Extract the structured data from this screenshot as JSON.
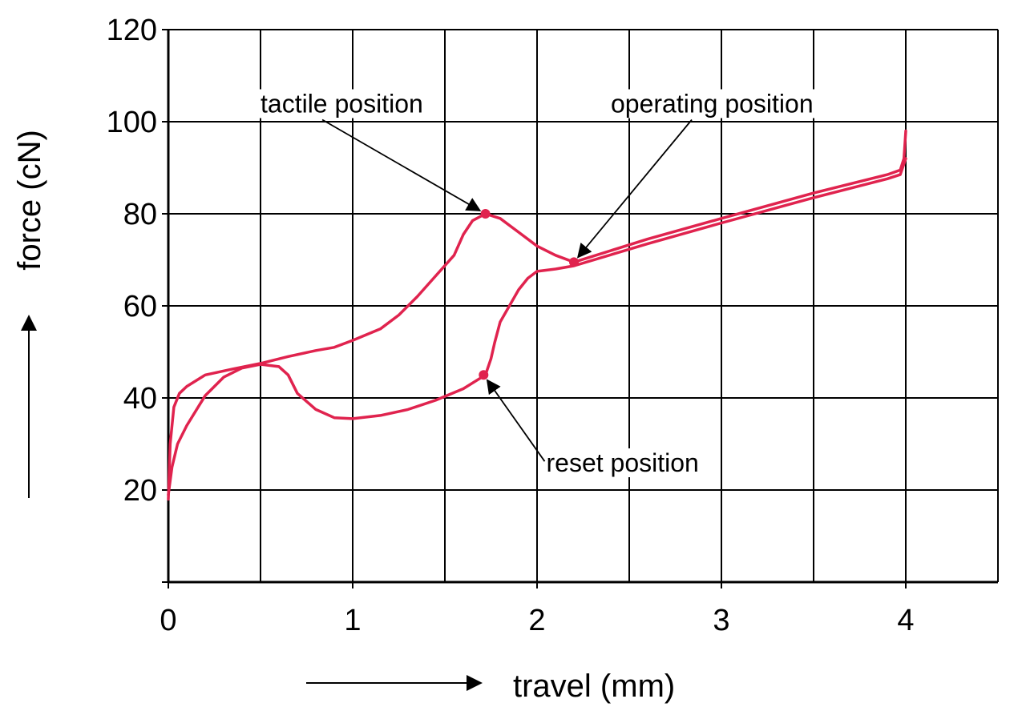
{
  "chart_data": {
    "type": "line",
    "title": "",
    "xlabel": "travel (mm)",
    "ylabel": "force (cN)",
    "xlim": [
      0,
      4.5
    ],
    "ylim": [
      0,
      120
    ],
    "x_ticks": [
      0,
      1,
      2,
      3,
      4
    ],
    "y_ticks": [
      20,
      40,
      60,
      80,
      100,
      120
    ],
    "grid": true,
    "line_color": "#e0234e",
    "series": [
      {
        "values": [
          [
            0.0,
            18
          ],
          [
            0.01,
            30
          ],
          [
            0.03,
            38
          ],
          [
            0.06,
            41
          ],
          [
            0.1,
            42.5
          ],
          [
            0.2,
            45
          ],
          [
            0.35,
            46.3
          ],
          [
            0.5,
            47.5
          ],
          [
            0.65,
            49
          ],
          [
            0.8,
            50.3
          ],
          [
            0.9,
            51
          ],
          [
            1.0,
            52.5
          ],
          [
            1.15,
            55
          ],
          [
            1.25,
            58
          ],
          [
            1.35,
            62
          ],
          [
            1.45,
            66.5
          ],
          [
            1.55,
            71
          ],
          [
            1.6,
            75.5
          ],
          [
            1.65,
            78.5
          ],
          [
            1.72,
            80
          ],
          [
            1.8,
            79
          ],
          [
            1.9,
            76
          ],
          [
            2.0,
            73
          ],
          [
            2.1,
            71
          ],
          [
            2.2,
            69.5
          ],
          [
            2.6,
            74.5
          ],
          [
            3.0,
            79
          ],
          [
            3.5,
            84.5
          ],
          [
            3.9,
            88.5
          ],
          [
            3.97,
            89.5
          ],
          [
            3.99,
            92
          ],
          [
            4.0,
            98
          ]
        ]
      },
      {
        "values": [
          [
            4.0,
            92
          ],
          [
            3.97,
            88.5
          ],
          [
            3.9,
            87.6
          ],
          [
            3.5,
            83.5
          ],
          [
            3.0,
            78
          ],
          [
            2.6,
            73.5
          ],
          [
            2.2,
            68.7
          ],
          [
            2.1,
            68
          ],
          [
            2.0,
            67.5
          ],
          [
            1.95,
            66
          ],
          [
            1.9,
            63.5
          ],
          [
            1.85,
            60
          ],
          [
            1.8,
            56.5
          ],
          [
            1.77,
            52
          ],
          [
            1.75,
            48.5
          ],
          [
            1.72,
            45
          ],
          [
            1.6,
            42
          ],
          [
            1.45,
            39.5
          ],
          [
            1.3,
            37.5
          ],
          [
            1.15,
            36.2
          ],
          [
            1.0,
            35.5
          ],
          [
            0.9,
            35.7
          ],
          [
            0.8,
            37.5
          ],
          [
            0.7,
            41
          ],
          [
            0.65,
            45
          ],
          [
            0.6,
            46.8
          ],
          [
            0.5,
            47.3
          ],
          [
            0.4,
            46.5
          ],
          [
            0.3,
            44.5
          ],
          [
            0.2,
            40.5
          ],
          [
            0.1,
            34
          ],
          [
            0.05,
            30
          ],
          [
            0.02,
            25
          ],
          [
            0.0,
            19
          ]
        ]
      }
    ],
    "markers": [
      {
        "x": 1.72,
        "y": 80
      },
      {
        "x": 2.2,
        "y": 69.5
      },
      {
        "x": 1.71,
        "y": 45
      }
    ],
    "annotations": [
      {
        "text": "tactile position",
        "x": 0.5,
        "y": 102,
        "target": [
          1.72,
          80
        ]
      },
      {
        "text": "operating position",
        "x": 2.4,
        "y": 102,
        "target": [
          2.2,
          69.5
        ]
      },
      {
        "text": "reset position",
        "x": 2.05,
        "y": 24,
        "target": [
          1.71,
          45
        ]
      }
    ]
  }
}
